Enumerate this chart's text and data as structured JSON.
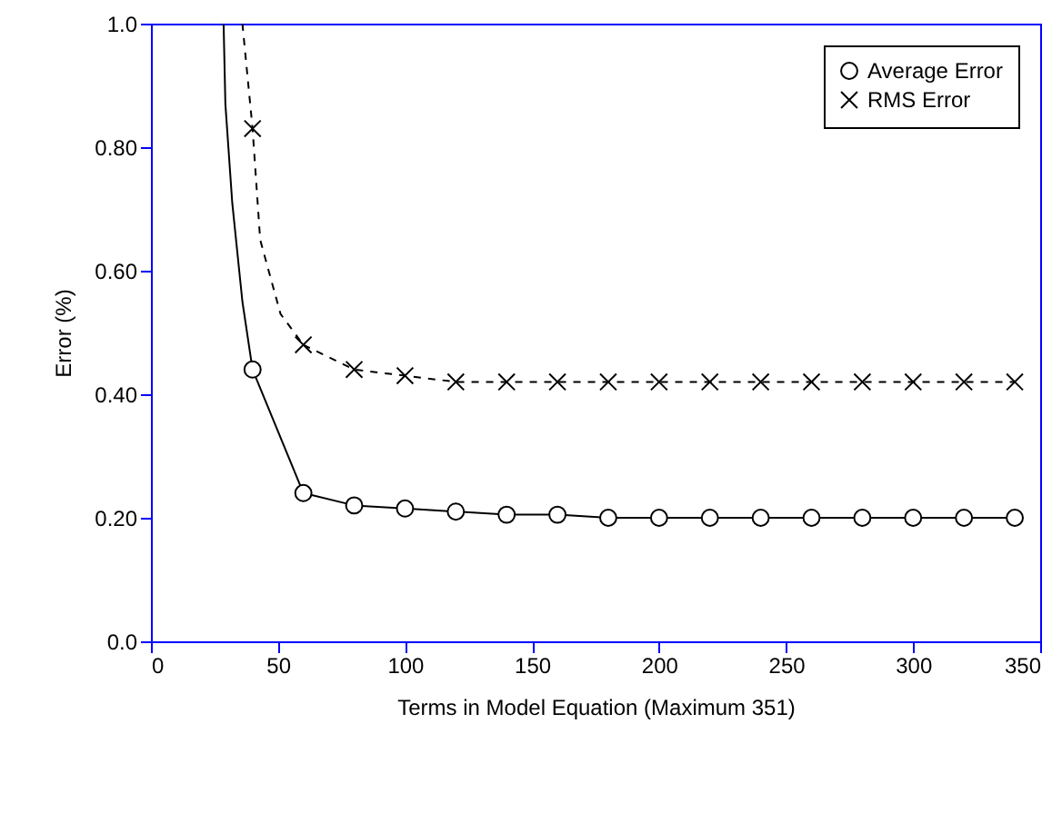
{
  "chart_data": {
    "type": "line",
    "xlabel": "Terms in Model Equation (Maximum 351)",
    "ylabel": "Error (%)",
    "xlim": [
      0,
      350
    ],
    "xticks": [
      0,
      50,
      100,
      150,
      200,
      250,
      300,
      350
    ],
    "ylim": [
      0,
      1
    ],
    "yticks": [
      {
        "value": 0,
        "label": "0.0"
      },
      {
        "value": 0.2,
        "label": "0.20"
      },
      {
        "value": 0.4,
        "label": "0.40"
      },
      {
        "value": 0.6,
        "label": "0.60"
      },
      {
        "value": 0.8,
        "label": "0.80"
      },
      {
        "value": 1,
        "label": "1.0"
      }
    ],
    "grid": false,
    "legend": "top right",
    "series": [
      {
        "color": "#000000",
        "line_style": "solid",
        "marker": "none",
        "x": [
          28.6,
          29.3,
          32,
          36,
          40
        ],
        "values": [
          1.0,
          0.87,
          0.71,
          0.55,
          0.44
        ]
      },
      {
        "name": "Average Error",
        "color": "#000000",
        "line_style": "solid",
        "marker": "circle",
        "x": [
          40,
          60,
          80,
          100,
          120,
          140,
          160,
          180,
          200,
          220,
          240,
          260,
          280,
          300,
          320,
          340
        ],
        "values": [
          0.44,
          0.24,
          0.22,
          0.215,
          0.21,
          0.205,
          0.205,
          0.2,
          0.2,
          0.2,
          0.2,
          0.2,
          0.2,
          0.2,
          0.2,
          0.2
        ]
      },
      {
        "color": "#000000",
        "line_style": "dashed",
        "marker": "none",
        "x": [
          36,
          40,
          43,
          51,
          60
        ],
        "values": [
          1.0,
          0.83,
          0.65,
          0.53,
          0.48
        ]
      },
      {
        "name": "RMS Error",
        "color": "#000000",
        "line_style": "dashed",
        "marker": "cross",
        "x": [
          60,
          80,
          100,
          120,
          140,
          160,
          180,
          200,
          220,
          240,
          260,
          280,
          300,
          320,
          340
        ],
        "values": [
          0.48,
          0.44,
          0.43,
          0.42,
          0.42,
          0.42,
          0.42,
          0.42,
          0.42,
          0.42,
          0.42,
          0.42,
          0.42,
          0.42,
          0.42
        ]
      },
      {
        "type": "scatter",
        "color": "#000000",
        "marker": "cross",
        "x": [
          40
        ],
        "values": [
          0.83
        ]
      }
    ]
  }
}
